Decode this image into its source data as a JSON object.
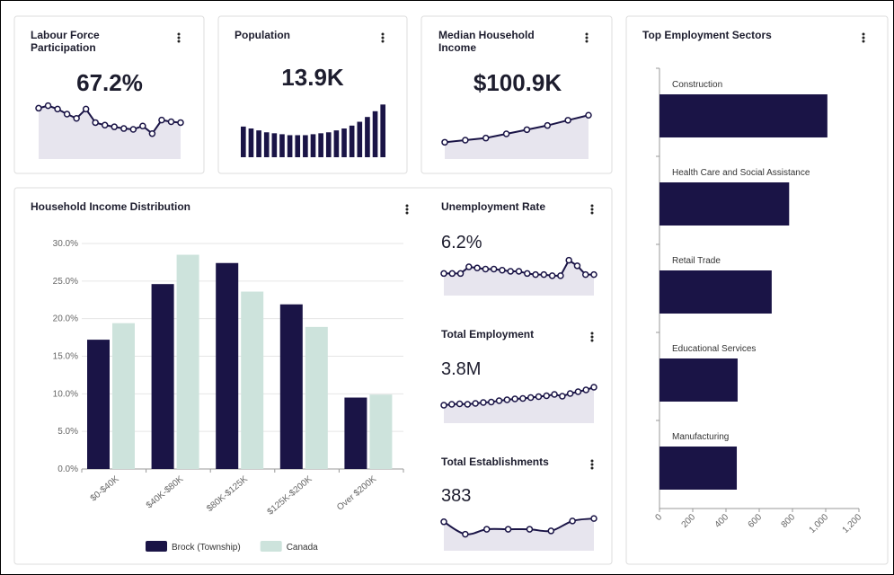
{
  "chart_data": [
    {
      "type": "line",
      "title": "Labour Force Participation",
      "kpi": "67.2%",
      "values": [
        68.0,
        68.3,
        67.9,
        67.3,
        66.8,
        67.9,
        66.3,
        66.0,
        65.8,
        65.6,
        65.5,
        65.9,
        65.0,
        66.6,
        66.4,
        66.3
      ],
      "ylim": [
        62,
        69
      ],
      "color": "#1a1446"
    },
    {
      "type": "bar",
      "title": "Population",
      "kpi": "13.9K",
      "values": [
        13.2,
        13.0,
        12.8,
        12.6,
        12.5,
        12.4,
        12.3,
        12.3,
        12.3,
        12.4,
        12.5,
        12.6,
        12.8,
        13.0,
        13.3,
        13.7,
        14.2,
        14.8,
        15.5
      ],
      "ylim": [
        10,
        16
      ],
      "color": "#1a1446"
    },
    {
      "type": "line",
      "title": "Median Household Income",
      "kpi": "$100.9K",
      "values": [
        88,
        89,
        90,
        92,
        94,
        96,
        98.5,
        100.9
      ],
      "ylim": [
        80,
        104
      ],
      "color": "#1a1446"
    },
    {
      "type": "hbar",
      "title": "Top Employment Sectors",
      "categories": [
        "Construction",
        "Health Care and Social Assistance",
        "Retail Trade",
        "Educational Services",
        "Manufacturing"
      ],
      "values": [
        1010,
        780,
        675,
        470,
        465
      ],
      "xlim": [
        0,
        1200
      ],
      "xticks": [
        0,
        200,
        400,
        600,
        800,
        {
          "value": 1000,
          "label": "1,000"
        },
        {
          "value": 1200,
          "label": "1,200"
        }
      ],
      "color": "#1a1446"
    },
    {
      "type": "grouped_bar",
      "title": "Household Income Distribution",
      "categories": [
        "$0-$40K",
        "$40K-$80K",
        "$80K-$125K",
        "$125K-$200K",
        "Over $200K"
      ],
      "series": [
        {
          "name": "Brock (Township)",
          "color": "#1a1446",
          "values": [
            17.2,
            24.6,
            27.4,
            21.9,
            9.5
          ]
        },
        {
          "name": "Canada",
          "color": "#cde3dc",
          "values": [
            19.4,
            28.5,
            23.6,
            18.9,
            9.9
          ]
        }
      ],
      "ylim": [
        0,
        30
      ],
      "yticks": [
        {
          "value": 0,
          "label": "0.0%"
        },
        {
          "value": 5,
          "label": "5.0%"
        },
        {
          "value": 10,
          "label": "10.0%"
        },
        {
          "value": 15,
          "label": "15.0%"
        },
        {
          "value": 20,
          "label": "20.0%"
        },
        {
          "value": 25,
          "label": "25.0%"
        },
        {
          "value": 30,
          "label": "30.0%"
        }
      ],
      "grid": true
    },
    {
      "type": "line",
      "title": "Unemployment Rate",
      "kpi": "6.2%",
      "values": [
        5.0,
        5.0,
        5.0,
        5.6,
        5.5,
        5.4,
        5.4,
        5.3,
        5.2,
        5.2,
        5.0,
        4.9,
        4.9,
        4.8,
        4.8,
        6.2,
        5.7,
        4.9,
        4.9
      ],
      "ylim": [
        3,
        6.5
      ],
      "color": "#1a1446"
    },
    {
      "type": "line",
      "title": "Total Employment",
      "kpi": "3.8M",
      "values": [
        3.4,
        3.42,
        3.43,
        3.42,
        3.44,
        3.46,
        3.47,
        3.5,
        3.52,
        3.54,
        3.55,
        3.57,
        3.59,
        3.61,
        3.64,
        3.6,
        3.66,
        3.7,
        3.74,
        3.8
      ],
      "ylim": [
        3.0,
        3.9
      ],
      "color": "#1a1446"
    },
    {
      "type": "line",
      "title": "Total Establishments",
      "kpi": "383",
      "values": [
        370,
        340,
        352,
        352,
        352,
        348,
        372,
        378
      ],
      "ylim": [
        300,
        400
      ],
      "smooth": true,
      "color": "#1a1446"
    }
  ]
}
